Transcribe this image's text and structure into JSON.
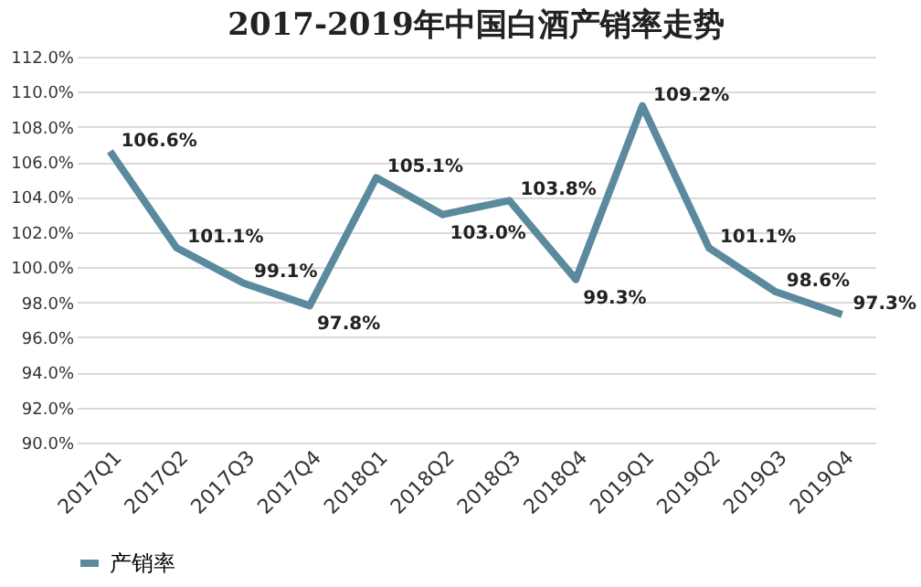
{
  "chart_data": {
    "type": "line",
    "title": "2017-2019年中国白酒产销率走势",
    "categories": [
      "2017Q1",
      "2017Q2",
      "2017Q3",
      "2017Q4",
      "2018Q1",
      "2018Q2",
      "2018Q3",
      "2018Q4",
      "2019Q1",
      "2019Q2",
      "2019Q3",
      "2019Q4"
    ],
    "series": [
      {
        "name": "产销率",
        "color": "#5b8a9e",
        "values": [
          106.6,
          101.1,
          99.1,
          97.8,
          105.1,
          103.0,
          103.8,
          99.3,
          109.2,
          101.1,
          98.6,
          97.3
        ],
        "value_labels": [
          "106.6%",
          "101.1%",
          "99.1%",
          "97.8%",
          "105.1%",
          "103.0%",
          "103.8%",
          "99.3%",
          "109.2%",
          "101.1%",
          "98.6%",
          "97.3%"
        ]
      }
    ],
    "ylim": [
      90,
      112
    ],
    "yticks": [
      {
        "value": 90,
        "label": "90.0%"
      },
      {
        "value": 92,
        "label": "92.0%"
      },
      {
        "value": 94,
        "label": "94.0%"
      },
      {
        "value": 96,
        "label": "96.0%"
      },
      {
        "value": 98,
        "label": "98.0%"
      },
      {
        "value": 100,
        "label": "100.0%"
      },
      {
        "value": 102,
        "label": "102.0%"
      },
      {
        "value": 104,
        "label": "104.0%"
      },
      {
        "value": 106,
        "label": "106.0%"
      },
      {
        "value": 108,
        "label": "108.0%"
      },
      {
        "value": 110,
        "label": "110.0%"
      },
      {
        "value": 112,
        "label": "112.0%"
      }
    ],
    "grid": "y",
    "legend": "bottom",
    "marker": "none",
    "line_style": "solid"
  }
}
